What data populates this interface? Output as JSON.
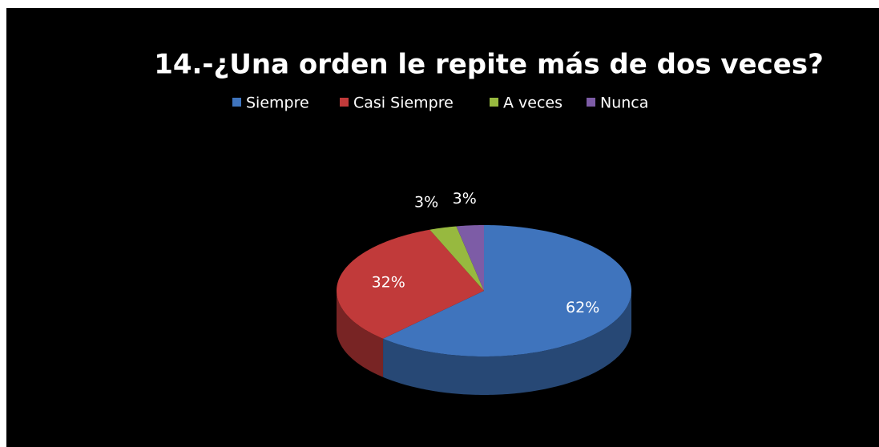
{
  "chart_data": {
    "type": "pie",
    "title": "14.-¿Una orden le repite más de dos veces?",
    "categories": [
      "Siempre",
      "Casi Siempre",
      "A veces",
      "Nunca"
    ],
    "values": [
      62,
      32,
      3,
      3
    ],
    "value_labels": [
      "62%",
      "32%",
      "3%",
      "3%"
    ],
    "colors": [
      "#3f74bd",
      "#c13a3a",
      "#97b93f",
      "#7d5ca6"
    ],
    "legend": "top"
  }
}
